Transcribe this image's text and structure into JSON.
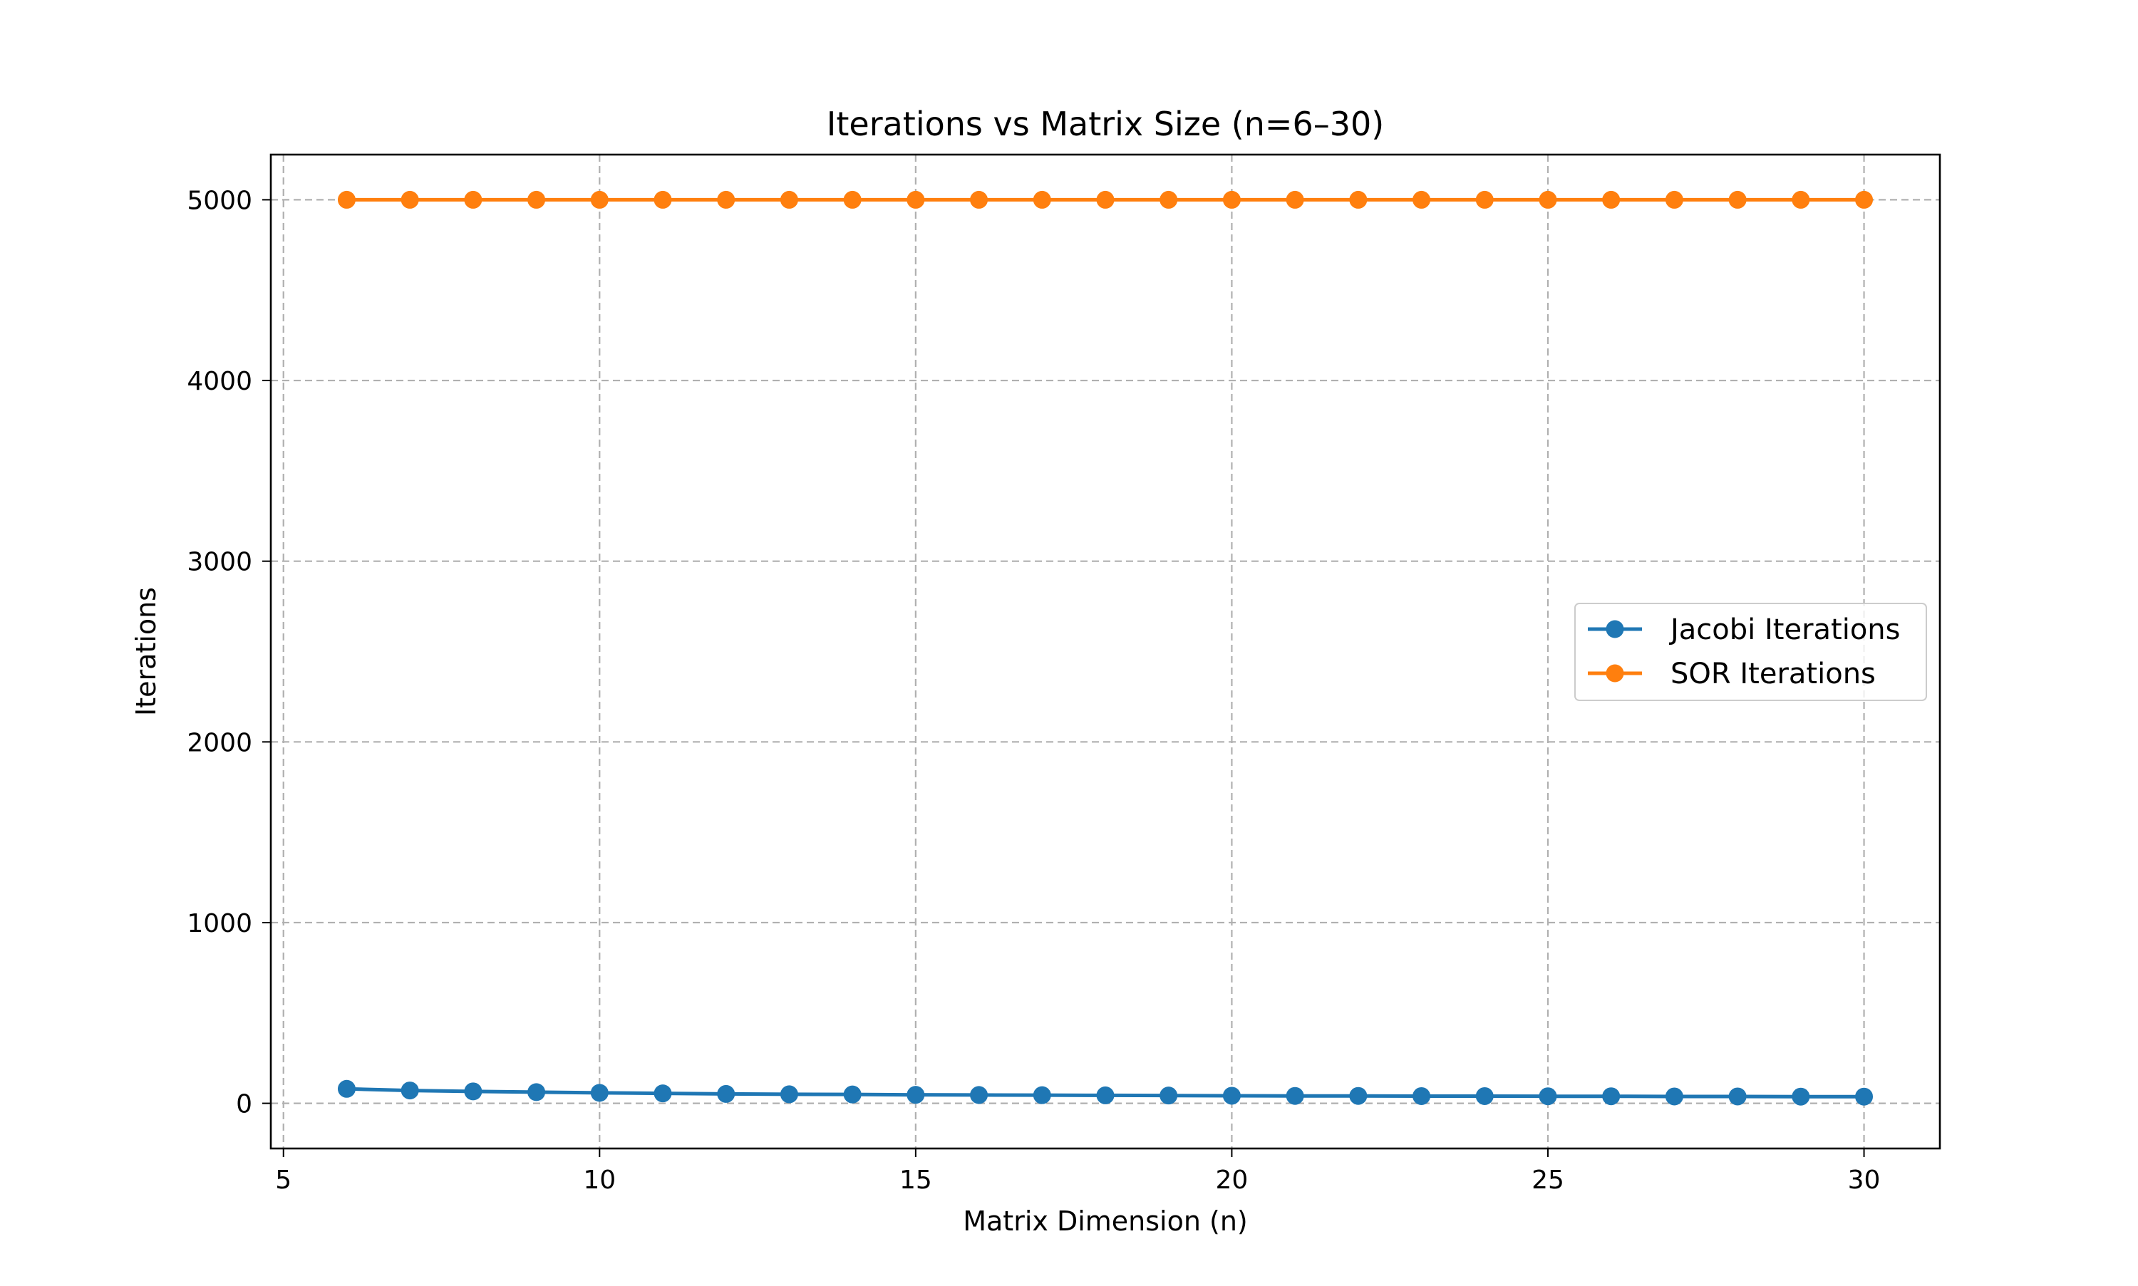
{
  "chart_data": {
    "type": "line",
    "title": "Iterations vs Matrix Size (n=6–30)",
    "xlabel": "Matrix Dimension (n)",
    "ylabel": "Iterations",
    "xlim": [
      4.8,
      31.2
    ],
    "ylim": [
      -250,
      5250
    ],
    "xticks": [
      5,
      10,
      15,
      20,
      25,
      30
    ],
    "yticks": [
      0,
      1000,
      2000,
      3000,
      4000,
      5000
    ],
    "grid": true,
    "legend_position": "center-right",
    "x": [
      6,
      7,
      8,
      9,
      10,
      11,
      12,
      13,
      14,
      15,
      16,
      17,
      18,
      19,
      20,
      21,
      22,
      23,
      24,
      25,
      26,
      27,
      28,
      29,
      30
    ],
    "series": [
      {
        "name": "Jacobi Iterations",
        "color": "#1f77b4",
        "marker": "circle",
        "values": [
          80,
          71,
          66,
          62,
          58,
          55,
          52,
          50,
          49,
          47,
          46,
          45,
          44,
          43,
          42,
          41,
          41,
          40,
          40,
          39,
          39,
          38,
          38,
          37,
          37
        ]
      },
      {
        "name": "SOR Iterations",
        "color": "#ff7f0e",
        "marker": "circle",
        "values": [
          5000,
          5000,
          5000,
          5000,
          5000,
          5000,
          5000,
          5000,
          5000,
          5000,
          5000,
          5000,
          5000,
          5000,
          5000,
          5000,
          5000,
          5000,
          5000,
          5000,
          5000,
          5000,
          5000,
          5000,
          5000
        ]
      }
    ]
  }
}
